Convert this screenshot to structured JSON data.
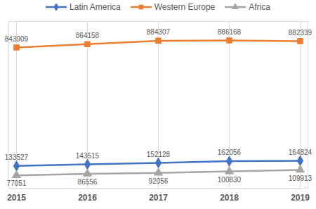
{
  "chart_data": {
    "type": "line",
    "categories": [
      "2015",
      "2016",
      "2017",
      "2018",
      "2019"
    ],
    "series": [
      {
        "name": "Latin America",
        "color": "#4472c4",
        "marker": "diamond",
        "values": [
          133527,
          143515,
          152128,
          162056,
          164824
        ]
      },
      {
        "name": "Western Europe",
        "color": "#ed7d31",
        "marker": "square",
        "values": [
          843909,
          864158,
          884307,
          886168,
          882339
        ]
      },
      {
        "name": "Africa",
        "color": "#a5a5a5",
        "marker": "triangle",
        "values": [
          77051,
          86556,
          92056,
          100830,
          109913
        ]
      }
    ],
    "ylim": [
      0,
      1000000
    ],
    "grid": true,
    "legend": "top",
    "data_labels": true,
    "tick_labels": "x"
  }
}
